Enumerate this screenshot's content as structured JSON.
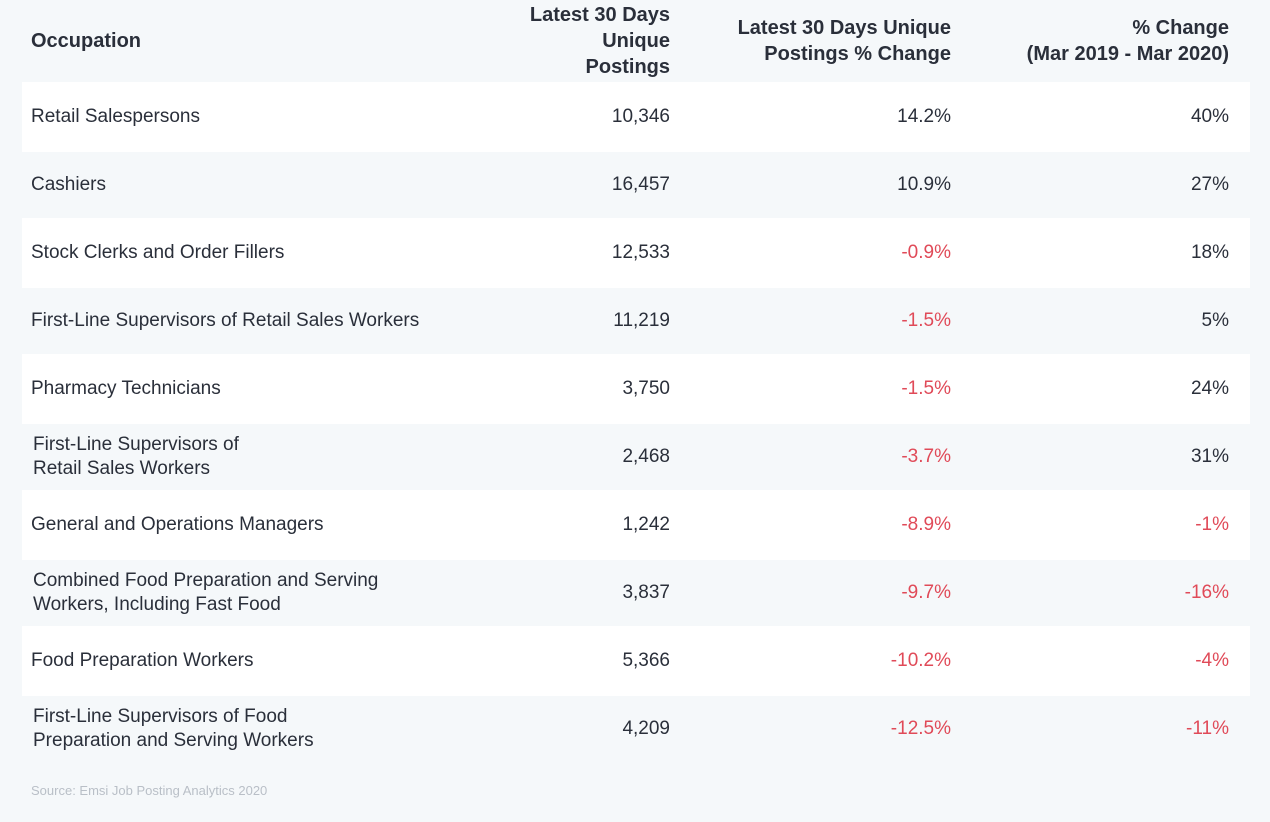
{
  "table": {
    "headers": {
      "occupation": "Occupation",
      "postings": [
        "Latest 30 Days",
        "Unique Postings"
      ],
      "postings_change": [
        "Latest 30 Days Unique",
        "Postings % Change"
      ],
      "yoy_change": [
        "% Change",
        "(Mar 2019 - Mar 2020)"
      ]
    },
    "rows": [
      {
        "occupation": [
          "Retail Salespersons"
        ],
        "postings": "10,346",
        "postings_change": "14.2%",
        "yoy_change": "40%"
      },
      {
        "occupation": [
          "Cashiers"
        ],
        "postings": "16,457",
        "postings_change": "10.9%",
        "yoy_change": "27%"
      },
      {
        "occupation": [
          "Stock Clerks and Order Fillers"
        ],
        "postings": "12,533",
        "postings_change": "-0.9%",
        "yoy_change": "18%"
      },
      {
        "occupation": [
          "First-Line Supervisors of Retail Sales Workers"
        ],
        "postings": "11,219",
        "postings_change": "-1.5%",
        "yoy_change": "5%"
      },
      {
        "occupation": [
          "Pharmacy Technicians"
        ],
        "postings": "3,750",
        "postings_change": "-1.5%",
        "yoy_change": "24%"
      },
      {
        "occupation": [
          "First-Line Supervisors of",
          "Retail Sales Workers"
        ],
        "postings": "2,468",
        "postings_change": "-3.7%",
        "yoy_change": "31%"
      },
      {
        "occupation": [
          "General and Operations Managers"
        ],
        "postings": "1,242",
        "postings_change": "-8.9%",
        "yoy_change": "-1%"
      },
      {
        "occupation": [
          "Combined Food Preparation and Serving",
          "Workers, Including Fast Food"
        ],
        "postings": "3,837",
        "postings_change": "-9.7%",
        "yoy_change": "-16%"
      },
      {
        "occupation": [
          "Food Preparation Workers"
        ],
        "postings": "5,366",
        "postings_change": "-10.2%",
        "yoy_change": "-4%"
      },
      {
        "occupation": [
          "First-Line Supervisors of Food",
          "Preparation and Serving Workers"
        ],
        "postings": "4,209",
        "postings_change": "-12.5%",
        "yoy_change": "-11%"
      }
    ]
  },
  "source": "Source: Emsi Job Posting Analytics 2020",
  "colors": {
    "negative": "#e04a58",
    "text": "#2a2f3a",
    "row_white": "#ffffff",
    "row_tint": "#f5f8fa",
    "source": "#b9bfc7"
  }
}
